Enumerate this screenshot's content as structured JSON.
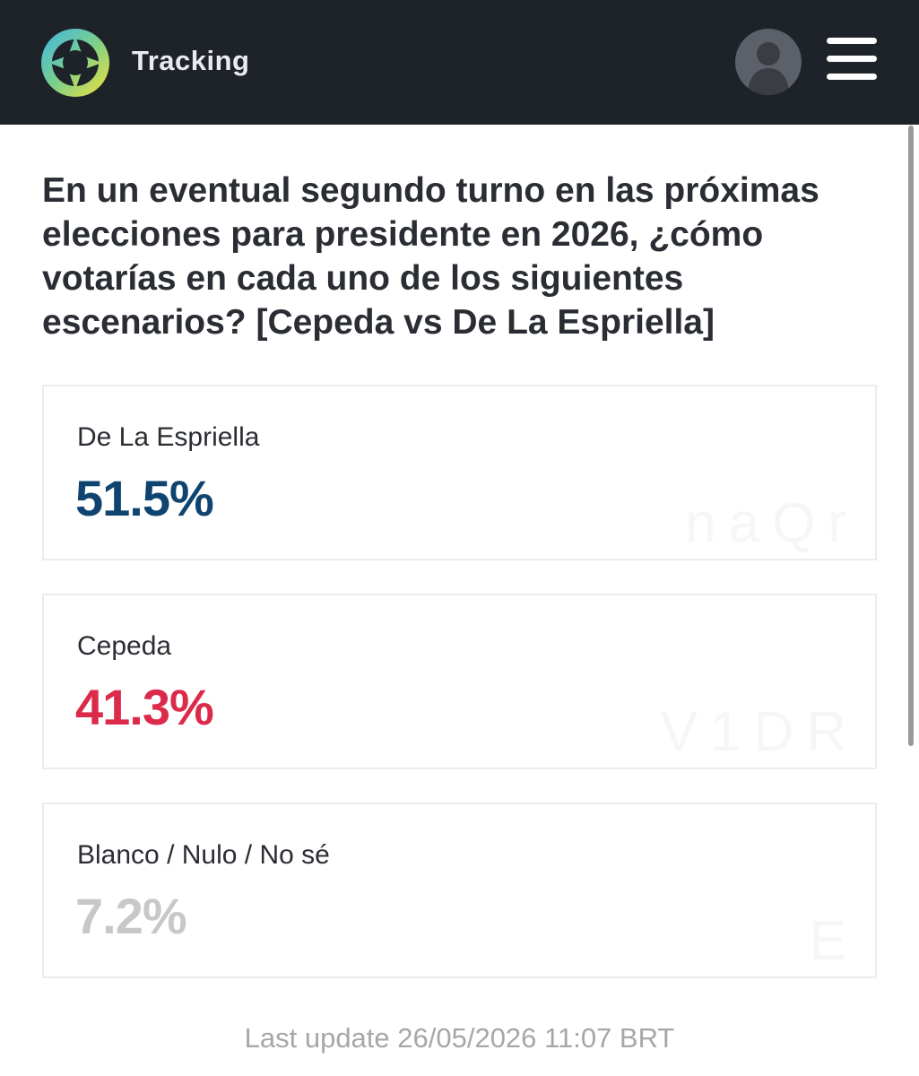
{
  "header": {
    "app_title": "Tracking",
    "logo_icon": "compass-star-logo",
    "avatar_icon": "user-avatar-icon",
    "menu_icon": "hamburger-menu-icon"
  },
  "question": "En un eventual segundo turno en las próximas elecciones para presidente en 2026, ¿cómo votarías en cada uno de los siguientes escenarios? [Cepeda vs De La Espriella]",
  "results": [
    {
      "label": "De La Espriella",
      "value": "51.5%",
      "color": "#0f4470",
      "watermark": "naQr"
    },
    {
      "label": "Cepeda",
      "value": "41.3%",
      "color": "#dc2a4b",
      "watermark": "V1DR"
    },
    {
      "label": "Blanco / Nulo / No sé",
      "value": "7.2%",
      "color": "#c8c8c8",
      "watermark": "E"
    }
  ],
  "footer": "Last update 26/05/2026 11:07 BRT",
  "colors": {
    "header_bg": "#1e2229",
    "footer_text": "#a7a7a7"
  }
}
